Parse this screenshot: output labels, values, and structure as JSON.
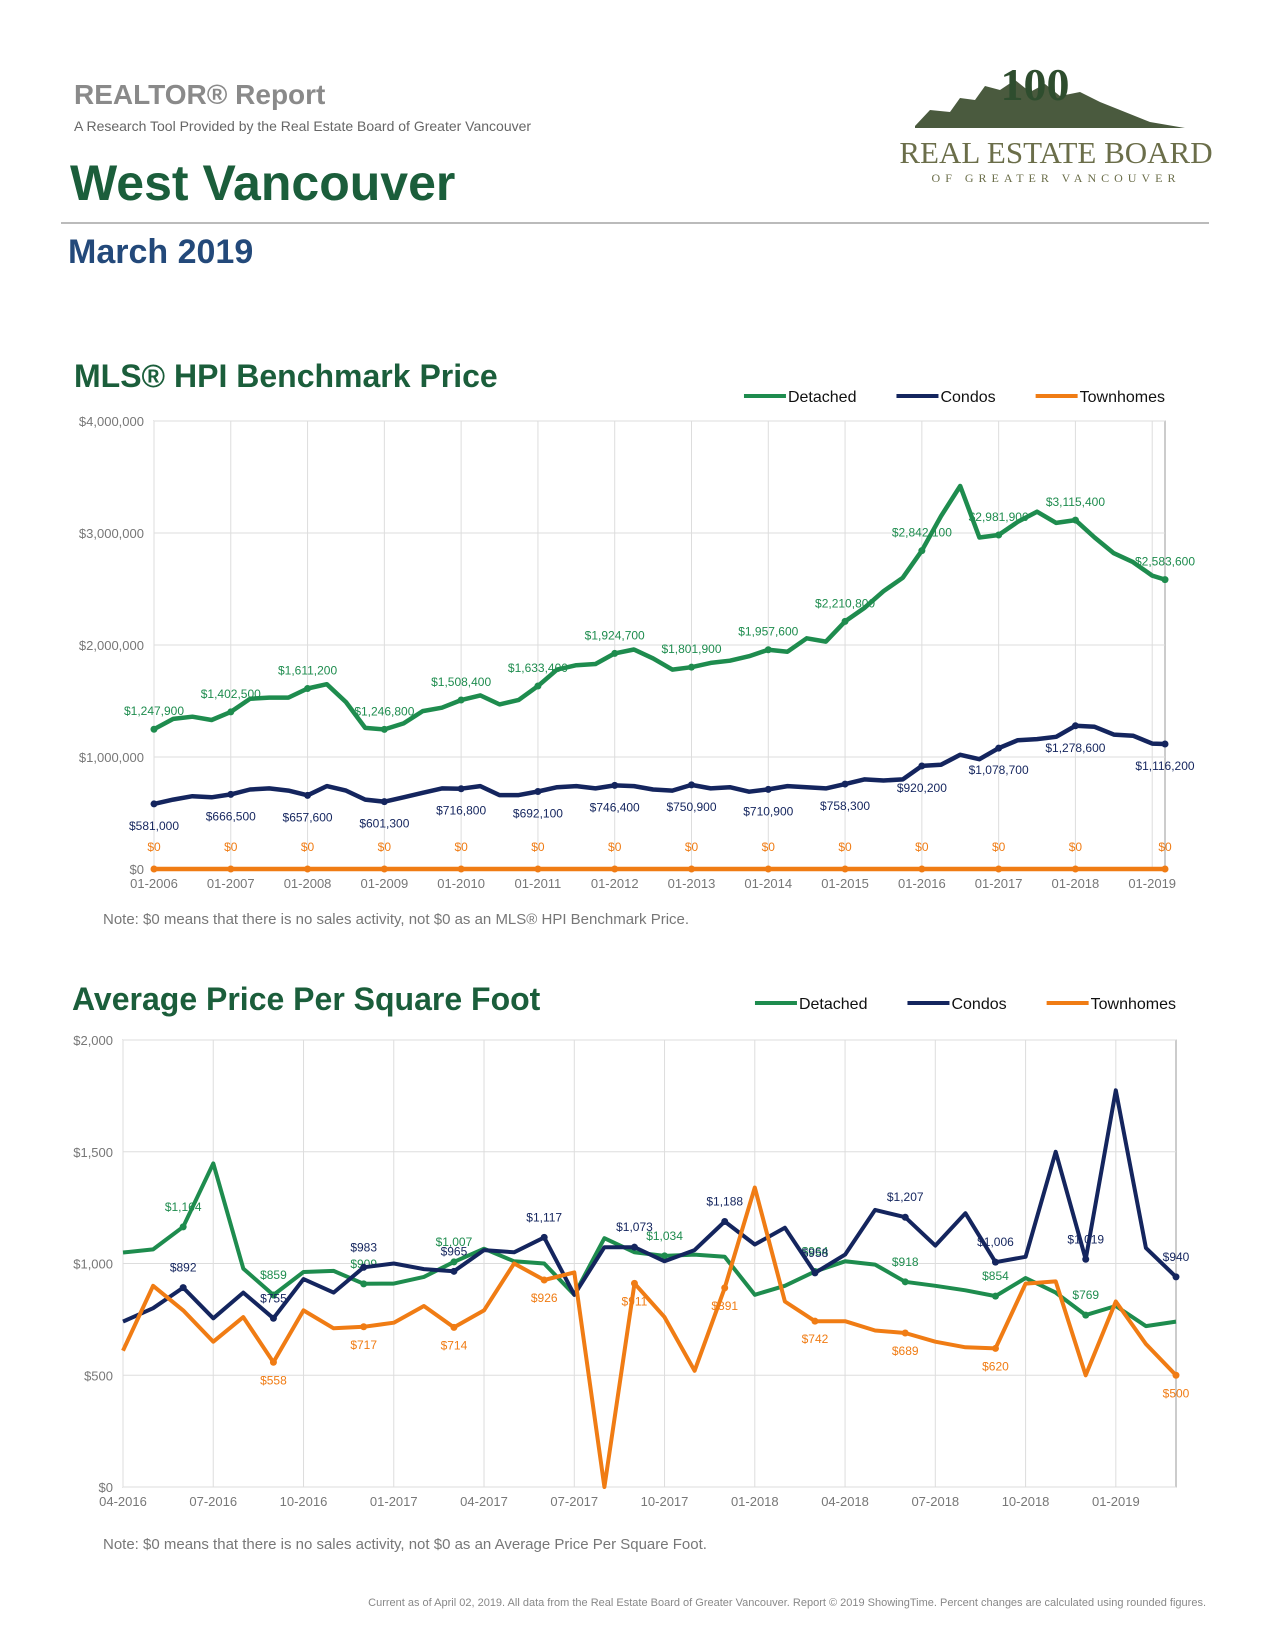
{
  "header": {
    "report": "REALTOR® Report",
    "tagline": "A Research Tool Provided by the Real Estate Board of Greater Vancouver",
    "area": "West Vancouver",
    "period": "March 2019"
  },
  "logo": {
    "mark": "100",
    "name": "REAL ESTATE BOARD",
    "region": "OF GREATER VANCOUVER"
  },
  "chart_data": [
    {
      "type": "line",
      "title": "MLS® HPI Benchmark Price",
      "note": "Note: $0 means that there is no sales activity, not $0 as an MLS® HPI Benchmark Price.",
      "x": [
        "01-2006",
        "04-2006",
        "07-2006",
        "10-2006",
        "01-2007",
        "04-2007",
        "07-2007",
        "10-2007",
        "01-2008",
        "04-2008",
        "07-2008",
        "10-2008",
        "01-2009",
        "04-2009",
        "07-2009",
        "10-2009",
        "01-2010",
        "04-2010",
        "07-2010",
        "10-2010",
        "01-2011",
        "04-2011",
        "07-2011",
        "10-2011",
        "01-2012",
        "04-2012",
        "07-2012",
        "10-2012",
        "01-2013",
        "04-2013",
        "07-2013",
        "10-2013",
        "01-2014",
        "04-2014",
        "07-2014",
        "10-2014",
        "01-2015",
        "04-2015",
        "07-2015",
        "10-2015",
        "01-2016",
        "04-2016",
        "07-2016",
        "10-2016",
        "01-2017",
        "04-2017",
        "07-2017",
        "10-2017",
        "01-2018",
        "04-2018",
        "07-2018",
        "10-2018",
        "01-2019",
        "03-2019"
      ],
      "xlim": [
        "01-2006",
        "03-2019"
      ],
      "xticks": [
        "01-2006",
        "01-2007",
        "01-2008",
        "01-2009",
        "01-2010",
        "01-2011",
        "01-2012",
        "01-2013",
        "01-2014",
        "01-2015",
        "01-2016",
        "01-2017",
        "01-2018",
        "01-2019"
      ],
      "ylim": [
        0,
        4000000
      ],
      "yticks": [
        {
          "value": 0,
          "label": "$0"
        },
        {
          "value": 1000000,
          "label": "$1,000,000"
        },
        {
          "value": 2000000,
          "label": "$2,000,000"
        },
        {
          "value": 3000000,
          "label": "$3,000,000"
        },
        {
          "value": 4000000,
          "label": "$4,000,000"
        }
      ],
      "grid": true,
      "legend": "top-right",
      "series": [
        {
          "name": "Detached",
          "color": "#1e8c4e",
          "values": [
            1247900,
            1340000,
            1360000,
            1330000,
            1402500,
            1520000,
            1530000,
            1530000,
            1611200,
            1650000,
            1490000,
            1260000,
            1246800,
            1300000,
            1410000,
            1440000,
            1508400,
            1550000,
            1470000,
            1510000,
            1633400,
            1780000,
            1820000,
            1830000,
            1924700,
            1960000,
            1880000,
            1780000,
            1801900,
            1840000,
            1860000,
            1900000,
            1957600,
            1940000,
            2060000,
            2030000,
            2210800,
            2330000,
            2480000,
            2600000,
            2842100,
            3150000,
            3420000,
            2960000,
            2981900,
            3100000,
            3190000,
            3090000,
            3115400,
            2960000,
            2820000,
            2740000,
            2620000,
            2583600
          ],
          "value_labels": [
            "$1,247,900",
            null,
            null,
            null,
            "$1,402,500",
            null,
            null,
            null,
            "$1,611,200",
            null,
            null,
            null,
            "$1,246,800",
            null,
            null,
            null,
            "$1,508,400",
            null,
            null,
            null,
            "$1,633,400",
            null,
            null,
            null,
            "$1,924,700",
            null,
            null,
            null,
            "$1,801,900",
            null,
            null,
            null,
            "$1,957,600",
            null,
            null,
            null,
            "$2,210,800",
            null,
            null,
            null,
            "$2,842,100",
            null,
            null,
            null,
            "$2,981,900",
            null,
            null,
            null,
            "$3,115,400",
            null,
            null,
            null,
            null,
            "$2,583,600"
          ]
        },
        {
          "name": "Condos",
          "color": "#14255e",
          "values": [
            581000,
            620000,
            650000,
            640000,
            666500,
            710000,
            720000,
            700000,
            657600,
            740000,
            700000,
            620000,
            601300,
            640000,
            680000,
            720000,
            716800,
            740000,
            660000,
            660000,
            692100,
            730000,
            740000,
            720000,
            746400,
            740000,
            710000,
            700000,
            750900,
            720000,
            730000,
            690000,
            710900,
            740000,
            730000,
            720000,
            758300,
            800000,
            790000,
            800000,
            920200,
            930000,
            1020000,
            980000,
            1078700,
            1150000,
            1160000,
            1180000,
            1278600,
            1270000,
            1200000,
            1190000,
            1120000,
            1116200
          ],
          "value_labels": [
            "$581,000",
            null,
            null,
            null,
            "$666,500",
            null,
            null,
            null,
            "$657,600",
            null,
            null,
            null,
            "$601,300",
            null,
            null,
            null,
            "$716,800",
            null,
            null,
            null,
            "$692,100",
            null,
            null,
            null,
            "$746,400",
            null,
            null,
            null,
            "$750,900",
            null,
            null,
            null,
            "$710,900",
            null,
            null,
            null,
            "$758,300",
            null,
            null,
            null,
            "$920,200",
            null,
            null,
            null,
            "$1,078,700",
            null,
            null,
            null,
            "$1,278,600",
            null,
            null,
            null,
            null,
            "$1,116,200"
          ]
        },
        {
          "name": "Townhomes",
          "color": "#f07c14",
          "values": [
            0,
            0,
            0,
            0,
            0,
            0,
            0,
            0,
            0,
            0,
            0,
            0,
            0,
            0,
            0,
            0,
            0,
            0,
            0,
            0,
            0,
            0,
            0,
            0,
            0,
            0,
            0,
            0,
            0,
            0,
            0,
            0,
            0,
            0,
            0,
            0,
            0,
            0,
            0,
            0,
            0,
            0,
            0,
            0,
            0,
            0,
            0,
            0,
            0,
            0,
            0,
            0,
            0,
            0
          ],
          "value_labels": [
            "$0",
            null,
            null,
            null,
            "$0",
            null,
            null,
            null,
            "$0",
            null,
            null,
            null,
            "$0",
            null,
            null,
            null,
            "$0",
            null,
            null,
            null,
            "$0",
            null,
            null,
            null,
            "$0",
            null,
            null,
            null,
            "$0",
            null,
            null,
            null,
            "$0",
            null,
            null,
            null,
            "$0",
            null,
            null,
            null,
            "$0",
            null,
            null,
            null,
            "$0",
            null,
            null,
            null,
            "$0",
            null,
            null,
            null,
            null,
            "$0"
          ]
        }
      ]
    },
    {
      "type": "line",
      "title": "Average Price Per Square Foot",
      "note": "Note: $0 means that there is no sales activity, not $0 as an Average Price Per Square Foot.",
      "x": [
        "04-2016",
        "05-2016",
        "06-2016",
        "07-2016",
        "08-2016",
        "09-2016",
        "10-2016",
        "11-2016",
        "12-2016",
        "01-2017",
        "02-2017",
        "03-2017",
        "04-2017",
        "05-2017",
        "06-2017",
        "07-2017",
        "08-2017",
        "09-2017",
        "10-2017",
        "11-2017",
        "12-2017",
        "01-2018",
        "02-2018",
        "03-2018",
        "04-2018",
        "05-2018",
        "06-2018",
        "07-2018",
        "08-2018",
        "09-2018",
        "10-2018",
        "11-2018",
        "12-2018",
        "01-2019",
        "02-2019",
        "03-2019"
      ],
      "xlim": [
        "04-2016",
        "03-2019"
      ],
      "xticks": [
        "04-2016",
        "07-2016",
        "10-2016",
        "01-2017",
        "04-2017",
        "07-2017",
        "10-2017",
        "01-2018",
        "04-2018",
        "07-2018",
        "10-2018",
        "01-2019"
      ],
      "ylim": [
        0,
        2000
      ],
      "yticks": [
        {
          "value": 0,
          "label": "$0"
        },
        {
          "value": 500,
          "label": "$500"
        },
        {
          "value": 1000,
          "label": "$1,000"
        },
        {
          "value": 1500,
          "label": "$1,500"
        },
        {
          "value": 2000,
          "label": "$2,000"
        }
      ],
      "grid": true,
      "legend": "top-right",
      "series": [
        {
          "name": "Detached",
          "color": "#1e8c4e",
          "values": [
            1049,
            1063,
            1164,
            1448,
            977,
            859,
            962,
            967,
            909,
            910,
            940,
            1007,
            1066,
            1010,
            1000,
            860,
            1113,
            1050,
            1034,
            1040,
            1030,
            860,
            900,
            964,
            1010,
            995,
            918,
            900,
            880,
            854,
            935,
            870,
            769,
            810,
            720,
            740
          ],
          "value_labels": [
            null,
            null,
            "$1,164",
            null,
            null,
            "$859",
            null,
            null,
            "$909",
            null,
            null,
            "$1,007",
            null,
            null,
            null,
            null,
            null,
            null,
            "$1,034",
            null,
            null,
            null,
            null,
            "$964",
            null,
            null,
            "$918",
            null,
            null,
            "$854",
            null,
            null,
            "$769",
            null,
            null,
            null
          ]
        },
        {
          "name": "Condos",
          "color": "#14255e",
          "values": [
            740,
            800,
            892,
            755,
            870,
            755,
            930,
            870,
            983,
            1000,
            975,
            965,
            1060,
            1050,
            1117,
            860,
            1073,
            1073,
            1010,
            1060,
            1188,
            1085,
            1160,
            958,
            1040,
            1240,
            1207,
            1080,
            1225,
            1006,
            1030,
            1500,
            1019,
            1775,
            1070,
            940
          ],
          "value_labels": [
            null,
            null,
            "$892",
            null,
            null,
            "$755",
            null,
            null,
            "$983",
            null,
            null,
            "$965",
            null,
            null,
            "$1,117",
            null,
            null,
            "$1,073",
            null,
            null,
            "$1,188",
            null,
            null,
            "$958",
            null,
            null,
            "$1,207",
            null,
            null,
            "$1,006",
            null,
            null,
            "$1,019",
            null,
            null,
            "$940"
          ]
        },
        {
          "name": "Townhomes",
          "color": "#f07c14",
          "values": [
            610,
            900,
            790,
            650,
            760,
            558,
            790,
            710,
            717,
            735,
            810,
            714,
            790,
            1000,
            926,
            960,
            0,
            911,
            760,
            520,
            891,
            1340,
            830,
            742,
            742,
            700,
            689,
            650,
            625,
            620,
            910,
            920,
            500,
            830,
            640,
            500
          ],
          "value_labels": [
            null,
            null,
            null,
            null,
            null,
            "$558",
            null,
            null,
            "$717",
            null,
            null,
            "$714",
            null,
            null,
            "$926",
            null,
            null,
            "$911",
            null,
            null,
            "$891",
            null,
            null,
            "$742",
            null,
            null,
            "$689",
            null,
            null,
            "$620",
            null,
            null,
            null,
            null,
            null,
            "$500"
          ]
        }
      ]
    }
  ],
  "footer": "Current as of April 02, 2019. All data from the Real Estate Board of Greater Vancouver. Report © 2019 ShowingTime. Percent changes are calculated using rounded figures."
}
